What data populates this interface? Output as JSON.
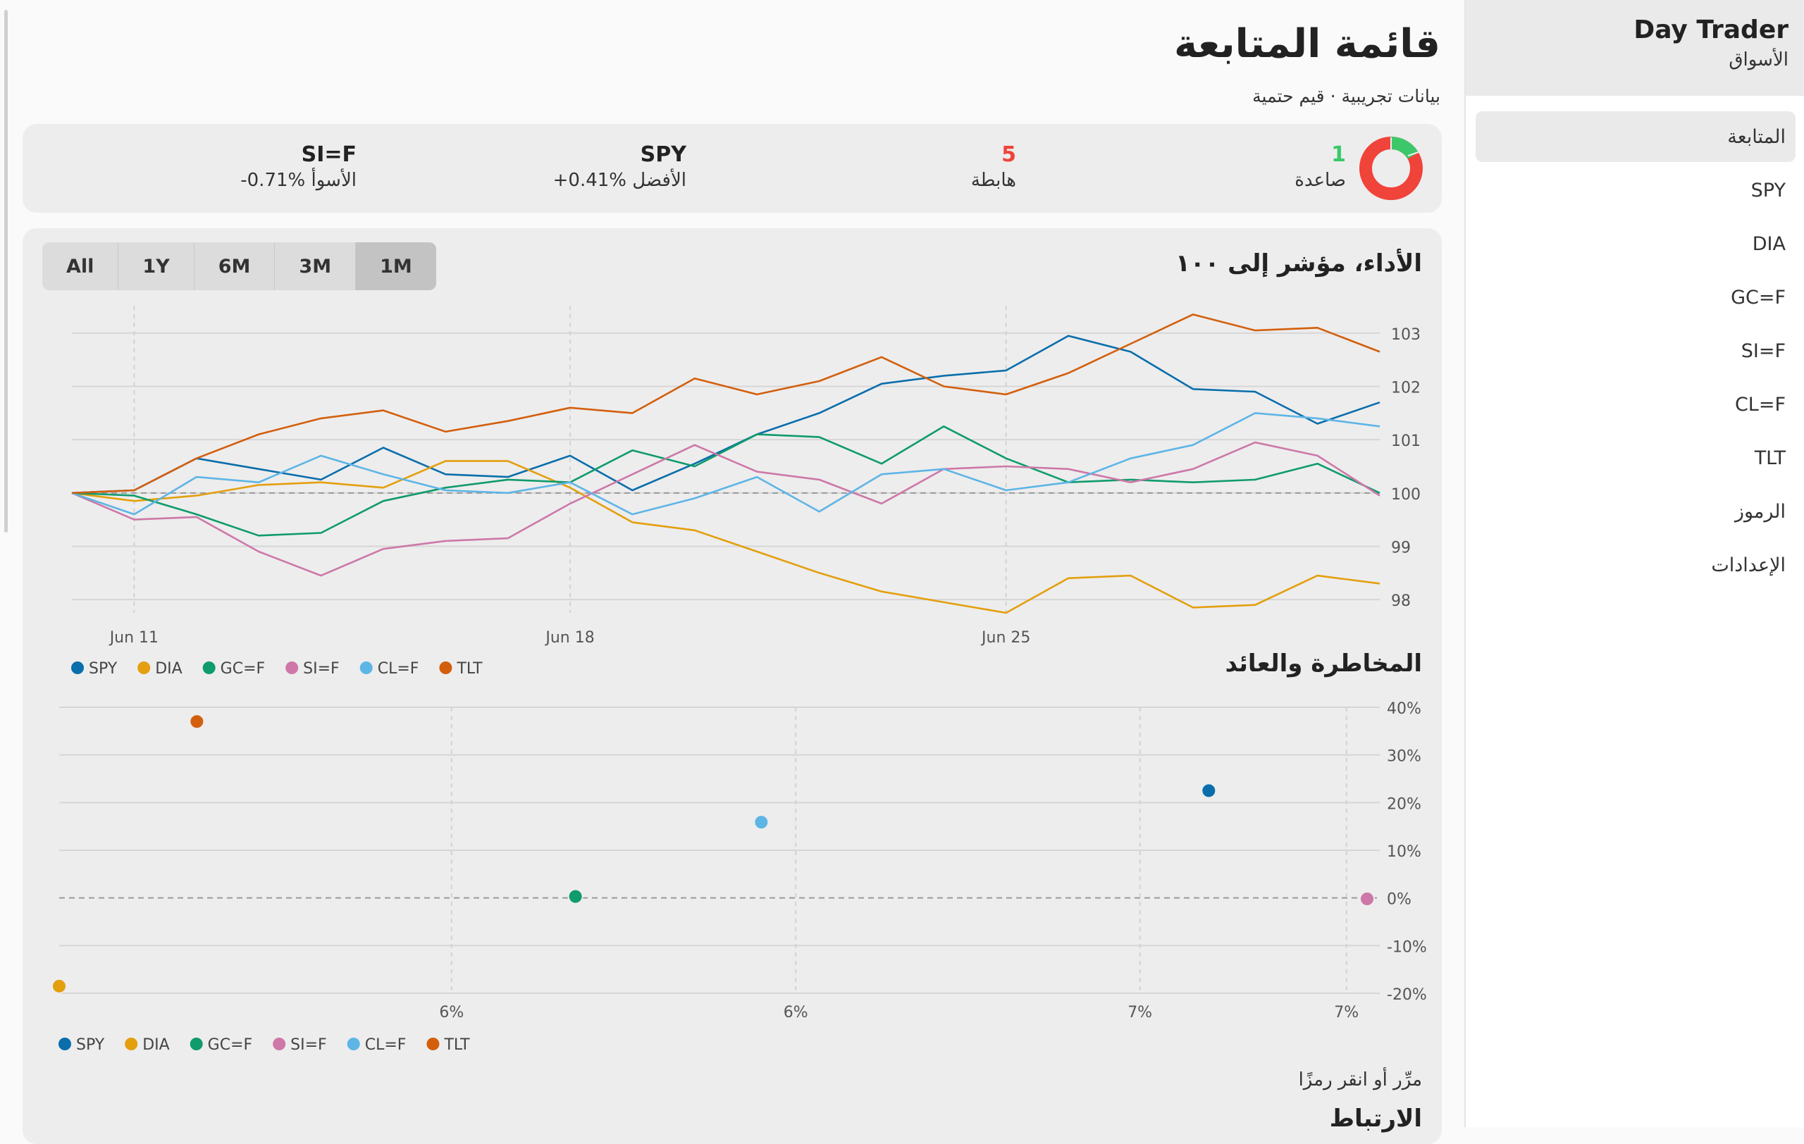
{
  "sidebar": {
    "brand_title": "Day Trader",
    "brand_sub": "الأسواق",
    "items": [
      {
        "label": "المتابعة",
        "active": true
      },
      {
        "label": "SPY"
      },
      {
        "label": "DIA"
      },
      {
        "label": "GC=F"
      },
      {
        "label": "SI=F"
      },
      {
        "label": "CL=F"
      },
      {
        "label": "TLT"
      },
      {
        "label": "الرموز"
      },
      {
        "label": "الإعدادات"
      }
    ]
  },
  "header": {
    "title": "قائمة المتابعة",
    "subtitle": "بيانات تجريبية · قيم حتمية"
  },
  "summary": {
    "up_count": "1",
    "up_label": "صاعدة",
    "down_count": "5",
    "down_label": "هابطة",
    "best_symbol": "SPY",
    "best_text": "الأفضل ‎+0.41%",
    "worst_symbol": "SI=F",
    "worst_text": "الأسوأ ‎-0.71%",
    "colors": {
      "up": "#3cc86a",
      "down": "#f0433a"
    }
  },
  "ranges": [
    {
      "label": "All"
    },
    {
      "label": "1Y"
    },
    {
      "label": "6M"
    },
    {
      "label": "3M"
    },
    {
      "label": "1M",
      "active": true
    }
  ],
  "performance": {
    "title": "الأداء، مؤشر إلى ١٠٠"
  },
  "risk": {
    "title": "المخاطرة والعائد",
    "hint": "مرِّر أو انقر رمزًا"
  },
  "correlation": {
    "title": "الارتباط"
  },
  "chart_data": [
    {
      "type": "line",
      "title": "الأداء، مؤشر إلى ١٠٠",
      "ylim": [
        97.75,
        103.25
      ],
      "yticks": [
        "98",
        "99",
        "100",
        "101",
        "102",
        "103"
      ],
      "xticks": [
        {
          "label": "Jun 11",
          "at": 1
        },
        {
          "label": "Jun 18",
          "at": 8
        },
        {
          "label": "Jun 25",
          "at": 15
        }
      ],
      "n_points": 22,
      "baseline": 100,
      "series": [
        {
          "name": "SPY",
          "color": "#0a6eab",
          "values": [
            100,
            100.05,
            100.65,
            100.45,
            100.25,
            100.85,
            100.35,
            100.3,
            100.7,
            100.05,
            100.55,
            101.1,
            101.5,
            102.05,
            102.2,
            102.3,
            102.95,
            102.65,
            101.95,
            101.9,
            101.3,
            101.7
          ]
        },
        {
          "name": "DIA",
          "color": "#e39f0e",
          "values": [
            100,
            99.85,
            99.95,
            100.15,
            100.2,
            100.1,
            100.6,
            100.6,
            100.1,
            99.45,
            99.3,
            98.9,
            98.5,
            98.15,
            97.95,
            97.75,
            98.4,
            98.45,
            97.85,
            97.9,
            98.45,
            98.3
          ]
        },
        {
          "name": "GC=F",
          "color": "#0f9b6b",
          "values": [
            100,
            99.95,
            99.6,
            99.2,
            99.25,
            99.85,
            100.1,
            100.25,
            100.2,
            100.8,
            100.5,
            101.1,
            101.05,
            100.55,
            101.25,
            100.65,
            100.2,
            100.25,
            100.2,
            100.25,
            100.55,
            100
          ]
        },
        {
          "name": "SI=F",
          "color": "#cd78a8",
          "values": [
            100,
            99.5,
            99.55,
            98.9,
            98.45,
            98.95,
            99.1,
            99.15,
            99.8,
            100.35,
            100.9,
            100.4,
            100.25,
            99.8,
            100.45,
            100.5,
            100.45,
            100.2,
            100.45,
            100.95,
            100.7,
            99.95
          ]
        },
        {
          "name": "CL=F",
          "color": "#5db5e6",
          "values": [
            100,
            99.6,
            100.3,
            100.2,
            100.7,
            100.35,
            100.05,
            100,
            100.2,
            99.6,
            99.9,
            100.3,
            99.65,
            100.35,
            100.45,
            100.05,
            100.2,
            100.65,
            100.9,
            101.5,
            101.4,
            101.25
          ]
        },
        {
          "name": "TLT",
          "color": "#d35f0d",
          "values": [
            100,
            100.05,
            100.65,
            101.1,
            101.4,
            101.55,
            101.15,
            101.35,
            101.6,
            101.5,
            102.15,
            101.85,
            102.1,
            102.55,
            102,
            101.85,
            102.25,
            102.8,
            103.35,
            103.05,
            103.1,
            102.65
          ]
        }
      ]
    },
    {
      "type": "scatter",
      "title": "المخاطرة والعائد",
      "xlim": [
        5.13,
        7.03
      ],
      "ylim": [
        -20,
        40
      ],
      "yticks": [
        -20,
        -10,
        0,
        10,
        20,
        30,
        40
      ],
      "ytick_labels": [
        "-20%",
        "-10%",
        "0%",
        "10%",
        "20%",
        "30%",
        "40%"
      ],
      "xticks": [
        5.7,
        6.2,
        6.7,
        7.0
      ],
      "xtick_labels": [
        "6%",
        "6%",
        "7%",
        "7%"
      ],
      "points": [
        {
          "name": "SPY",
          "color": "#0a6eab",
          "x": 6.8,
          "y": 22.5
        },
        {
          "name": "DIA",
          "color": "#e39f0e",
          "x": 5.13,
          "y": -18.5
        },
        {
          "name": "GC=F",
          "color": "#0f9b6b",
          "x": 5.88,
          "y": 0.3
        },
        {
          "name": "SI=F",
          "color": "#cd78a8",
          "x": 7.03,
          "y": -0.2
        },
        {
          "name": "CL=F",
          "color": "#5db5e6",
          "x": 6.15,
          "y": 15.9
        },
        {
          "name": "TLT",
          "color": "#d35f0d",
          "x": 5.33,
          "y": 37
        }
      ]
    }
  ]
}
